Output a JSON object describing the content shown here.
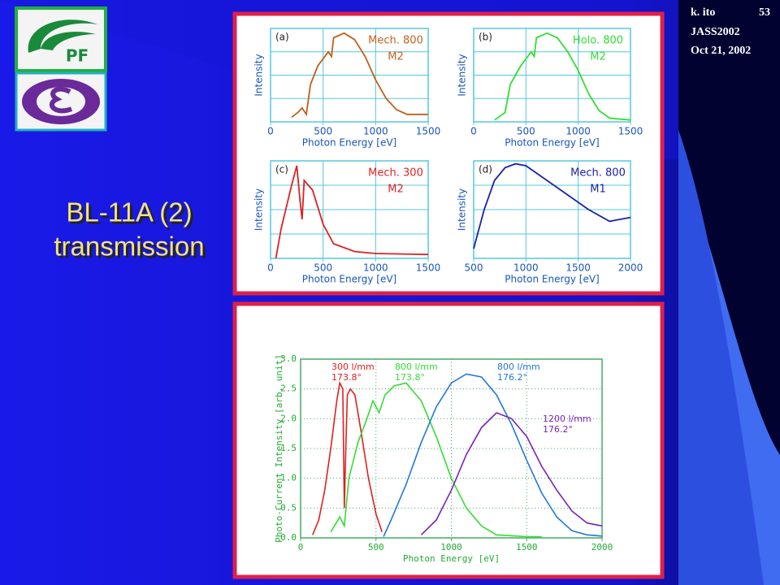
{
  "header": {
    "author": "k. ito",
    "page": "53",
    "event": "JASS2002",
    "date": "Oct 21, 2002"
  },
  "logo_text": "PF",
  "title": [
    "BL-11A (2)",
    "transmission"
  ],
  "chart_data": [
    {
      "type": "line",
      "panel": "(a)",
      "xlabel": "Photon Energy [eV]",
      "ylabel": "Intensity",
      "xlim": [
        0,
        1500
      ],
      "xticks": [
        0,
        500,
        1000,
        1500
      ],
      "ylim": [
        0,
        1
      ],
      "grid": true,
      "series": [
        {
          "name": "Mech. 800",
          "mirror": "M2",
          "color": "#c0601a",
          "x": [
            200,
            260,
            300,
            340,
            380,
            450,
            550,
            580,
            600,
            700,
            800,
            900,
            1000,
            1100,
            1200,
            1300,
            1500
          ],
          "values": [
            0.05,
            0.1,
            0.15,
            0.08,
            0.4,
            0.6,
            0.75,
            0.7,
            0.9,
            0.95,
            0.88,
            0.7,
            0.45,
            0.25,
            0.13,
            0.08,
            0.08
          ]
        }
      ]
    },
    {
      "type": "line",
      "panel": "(b)",
      "xlabel": "Photon Energy [eV]",
      "ylabel": "Intensity",
      "xlim": [
        0,
        1500
      ],
      "xticks": [
        0,
        500,
        1000,
        1500
      ],
      "ylim": [
        0,
        1
      ],
      "grid": true,
      "series": [
        {
          "name": "Holo. 800",
          "mirror": "M2",
          "color": "#33dd33",
          "x": [
            200,
            300,
            350,
            450,
            550,
            580,
            600,
            700,
            800,
            900,
            1000,
            1100,
            1200,
            1300,
            1500
          ],
          "values": [
            0.02,
            0.1,
            0.4,
            0.6,
            0.75,
            0.7,
            0.9,
            0.95,
            0.9,
            0.75,
            0.55,
            0.3,
            0.12,
            0.04,
            0.02
          ]
        }
      ]
    },
    {
      "type": "line",
      "panel": "(c)",
      "xlabel": "Photon Energy [eV]",
      "ylabel": "Intensity",
      "xlim": [
        0,
        1500
      ],
      "xticks": [
        0,
        500,
        1000,
        1500
      ],
      "ylim": [
        0,
        1
      ],
      "grid": true,
      "series": [
        {
          "name": "Mech. 300",
          "mirror": "M2",
          "color": "#dd2222",
          "x": [
            50,
            100,
            200,
            250,
            280,
            300,
            320,
            400,
            500,
            600,
            800,
            1000,
            1500
          ],
          "values": [
            0.0,
            0.3,
            0.75,
            0.95,
            0.6,
            0.4,
            0.8,
            0.7,
            0.35,
            0.15,
            0.07,
            0.05,
            0.04
          ]
        }
      ]
    },
    {
      "type": "line",
      "panel": "(d)",
      "xlabel": "Photon Energy [eV]",
      "ylabel": "Intensity",
      "xlim": [
        500,
        2000
      ],
      "xticks": [
        500,
        1000,
        1500,
        2000
      ],
      "ylim": [
        0,
        1
      ],
      "grid": true,
      "series": [
        {
          "name": "Mech. 800",
          "mirror": "M1",
          "color": "#1a22aa",
          "x": [
            500,
            600,
            700,
            800,
            900,
            1000,
            1200,
            1400,
            1600,
            1800,
            1900,
            2000
          ],
          "values": [
            0.1,
            0.5,
            0.8,
            0.93,
            0.97,
            0.95,
            0.8,
            0.65,
            0.5,
            0.38,
            0.4,
            0.42
          ]
        }
      ]
    },
    {
      "type": "line",
      "xlabel": "Photon Energy [eV]",
      "ylabel": "Photo-Current Intensity [arb. unit]",
      "xlim": [
        0,
        2000
      ],
      "xticks": [
        0,
        500,
        1000,
        1500,
        2000
      ],
      "ylim": [
        0,
        3
      ],
      "yticks": [
        {
          "value": 0,
          "label": "0.0"
        },
        0.5,
        {
          "value": 1,
          "label": "1.0"
        },
        1.5,
        {
          "value": 2,
          "label": "2.0"
        },
        2.5,
        {
          "value": 3,
          "label": "3.0"
        }
      ],
      "grid": true,
      "series": [
        {
          "name": "300 l/mm",
          "angle": "173.8°",
          "color": "#e02020",
          "x": [
            80,
            120,
            160,
            200,
            240,
            260,
            280,
            290,
            300,
            310,
            330,
            360,
            400,
            450,
            500,
            540
          ],
          "values": [
            0.05,
            0.3,
            0.8,
            1.5,
            2.3,
            2.6,
            2.5,
            0.5,
            1.5,
            2.4,
            2.5,
            2.4,
            1.8,
            1.0,
            0.4,
            0.1
          ]
        },
        {
          "name": "800 l/mm",
          "angle": "173.8°",
          "color": "#33dd33",
          "x": [
            200,
            260,
            290,
            320,
            380,
            440,
            480,
            520,
            560,
            620,
            700,
            800,
            900,
            1000,
            1100,
            1200,
            1300,
            1500,
            1600
          ],
          "values": [
            0.1,
            0.35,
            0.2,
            1.0,
            1.6,
            2.0,
            2.3,
            2.1,
            2.4,
            2.55,
            2.6,
            2.3,
            1.7,
            1.0,
            0.5,
            0.2,
            0.05,
            0.02,
            0.02
          ]
        },
        {
          "name": "800 l/mm",
          "angle": "176.2°",
          "color": "#2277dd",
          "x": [
            550,
            600,
            700,
            800,
            900,
            1000,
            1100,
            1200,
            1300,
            1400,
            1500,
            1600,
            1700,
            1800,
            1900,
            2000
          ],
          "values": [
            0.02,
            0.3,
            0.9,
            1.6,
            2.2,
            2.6,
            2.75,
            2.7,
            2.4,
            1.9,
            1.3,
            0.75,
            0.35,
            0.12,
            0.05,
            0.03
          ]
        },
        {
          "name": "1200 l/mm",
          "angle": "176.2°",
          "color": "#7722bb",
          "x": [
            800,
            900,
            1000,
            1100,
            1200,
            1300,
            1400,
            1500,
            1600,
            1700,
            1800,
            1900,
            2000
          ],
          "values": [
            0.05,
            0.3,
            0.8,
            1.4,
            1.85,
            2.1,
            2.0,
            1.7,
            1.2,
            0.8,
            0.45,
            0.25,
            0.2
          ]
        }
      ]
    }
  ]
}
